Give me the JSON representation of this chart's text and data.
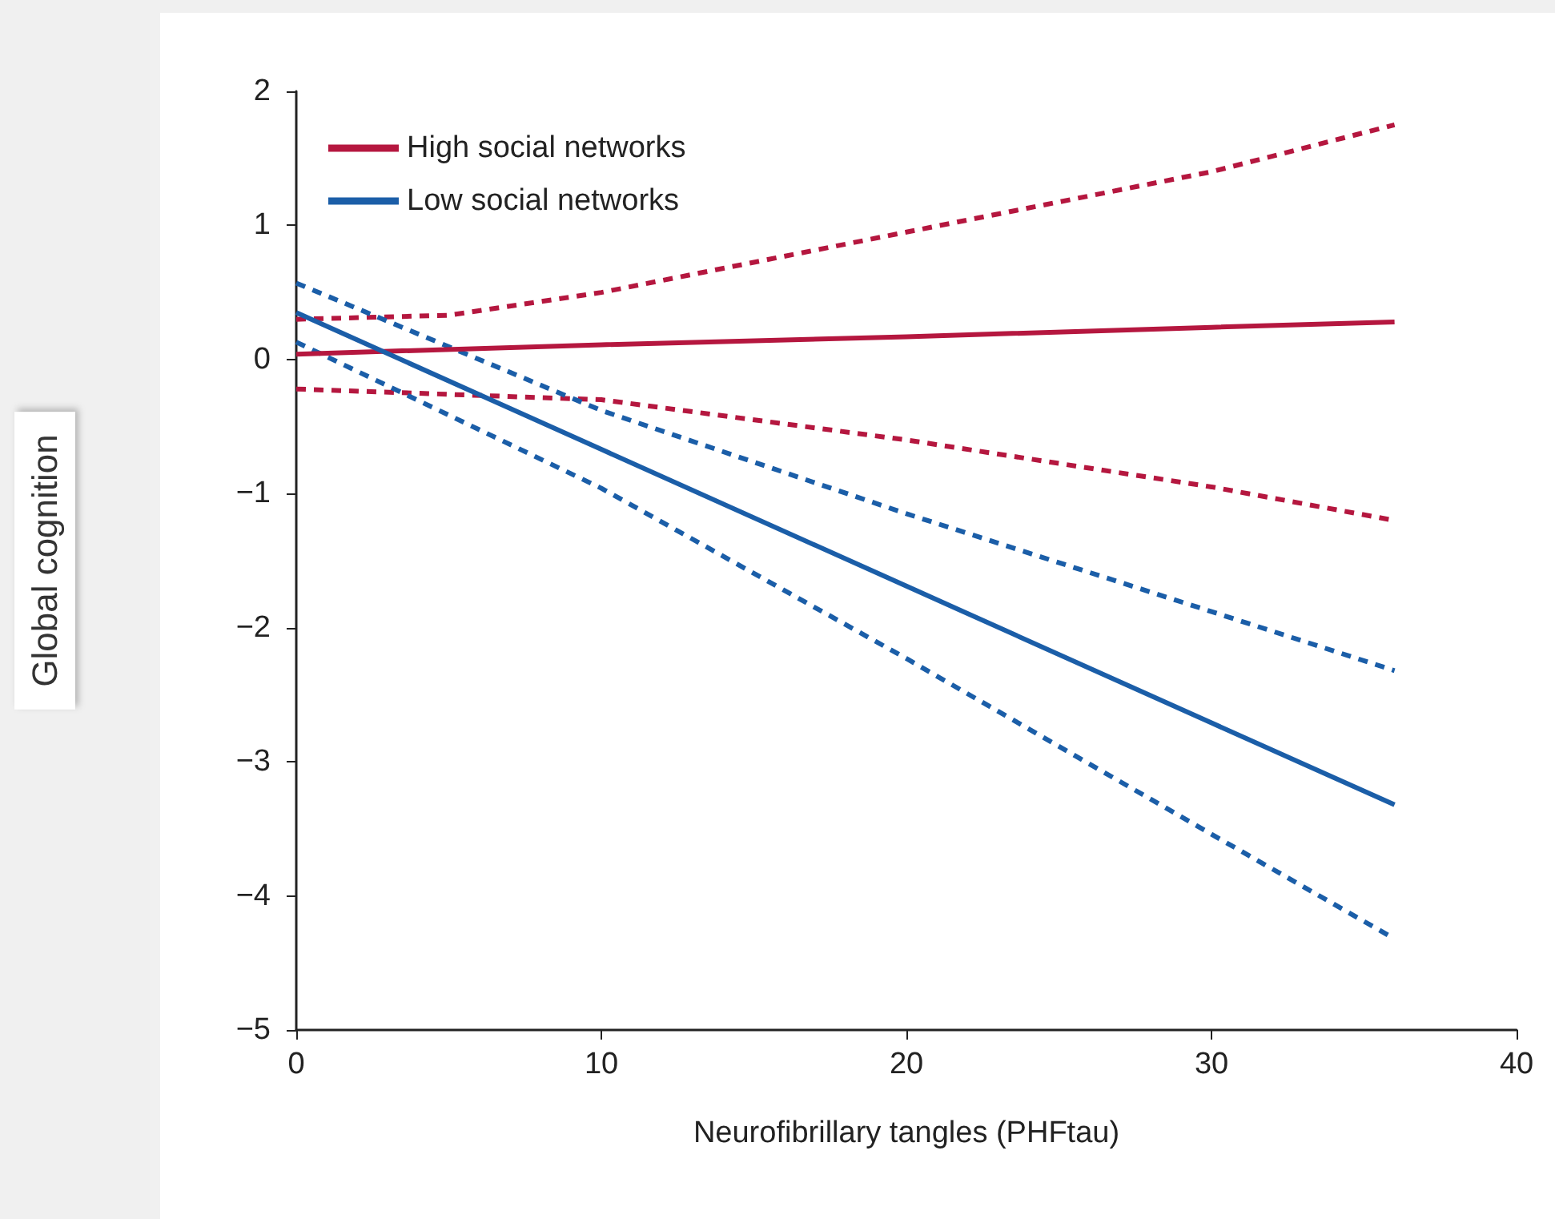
{
  "chart_data": {
    "type": "line",
    "xlabel": "Neurofibrillary tangles (PHFtau)",
    "ylabel": "Global cognition",
    "xlim": [
      0,
      40
    ],
    "xticks": [
      0,
      10,
      20,
      30,
      40
    ],
    "ylim": [
      -5,
      2
    ],
    "yticks": [
      -5,
      -4,
      -3,
      -2,
      -1,
      0,
      1,
      2
    ],
    "grid": false,
    "legend": "top left",
    "marker": "none",
    "series": [
      {
        "name": "High social networks",
        "color": "#b5173f",
        "line_style": "solid",
        "x": [
          0,
          10,
          20,
          30,
          36
        ],
        "values": [
          0.04,
          0.11,
          0.17,
          0.24,
          0.28
        ]
      },
      {
        "color": "#b5173f",
        "line_style": "dashed",
        "x": [
          0,
          5,
          10,
          20,
          30,
          36
        ],
        "values": [
          0.3,
          0.33,
          0.5,
          0.95,
          1.4,
          1.75
        ]
      },
      {
        "color": "#b5173f",
        "line_style": "dashed",
        "x": [
          0,
          10,
          20,
          30,
          36
        ],
        "values": [
          -0.22,
          -0.3,
          -0.6,
          -0.95,
          -1.2
        ]
      },
      {
        "name": "Low social networks",
        "color": "#1b5ea8",
        "line_style": "solid",
        "x": [
          0,
          10,
          20,
          30,
          36
        ],
        "values": [
          0.35,
          -0.67,
          -1.69,
          -2.71,
          -3.32
        ]
      },
      {
        "color": "#1b5ea8",
        "line_style": "dashed",
        "x": [
          0,
          10,
          20,
          30,
          36
        ],
        "values": [
          0.57,
          -0.38,
          -1.15,
          -1.88,
          -2.32
        ]
      },
      {
        "color": "#1b5ea8",
        "line_style": "dashed",
        "x": [
          0,
          10,
          20,
          30,
          36
        ],
        "values": [
          0.13,
          -0.96,
          -2.23,
          -3.54,
          -4.32
        ]
      }
    ]
  }
}
